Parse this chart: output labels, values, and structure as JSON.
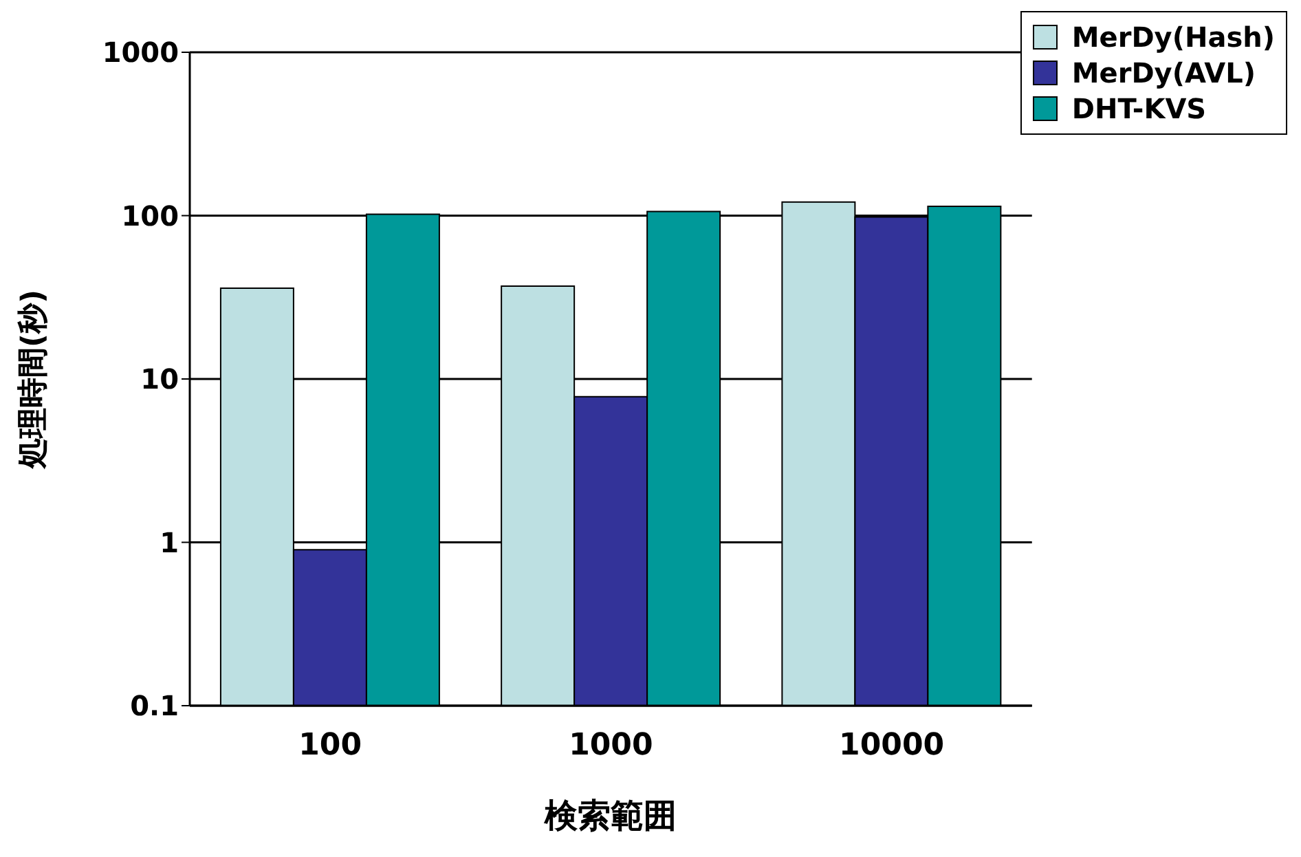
{
  "chart_data": {
    "type": "bar",
    "xlabel": "検索範囲",
    "ylabel": "処理時間(秒)",
    "categories": [
      "100",
      "1000",
      "10000"
    ],
    "series": [
      {
        "name": "MerDy(Hash)",
        "color": "#bde0e2",
        "values": [
          36,
          37,
          121
        ]
      },
      {
        "name": "MerDy(AVL)",
        "color": "#333399",
        "values": [
          0.9,
          7.8,
          98
        ]
      },
      {
        "name": "DHT-KVS",
        "color": "#009999",
        "values": [
          102,
          106,
          114
        ]
      }
    ],
    "log": "y",
    "ylim": [
      0.1,
      1000
    ],
    "yticks": [
      0.1,
      1,
      10,
      100,
      1000
    ],
    "grid": "y",
    "legend": "top right"
  }
}
